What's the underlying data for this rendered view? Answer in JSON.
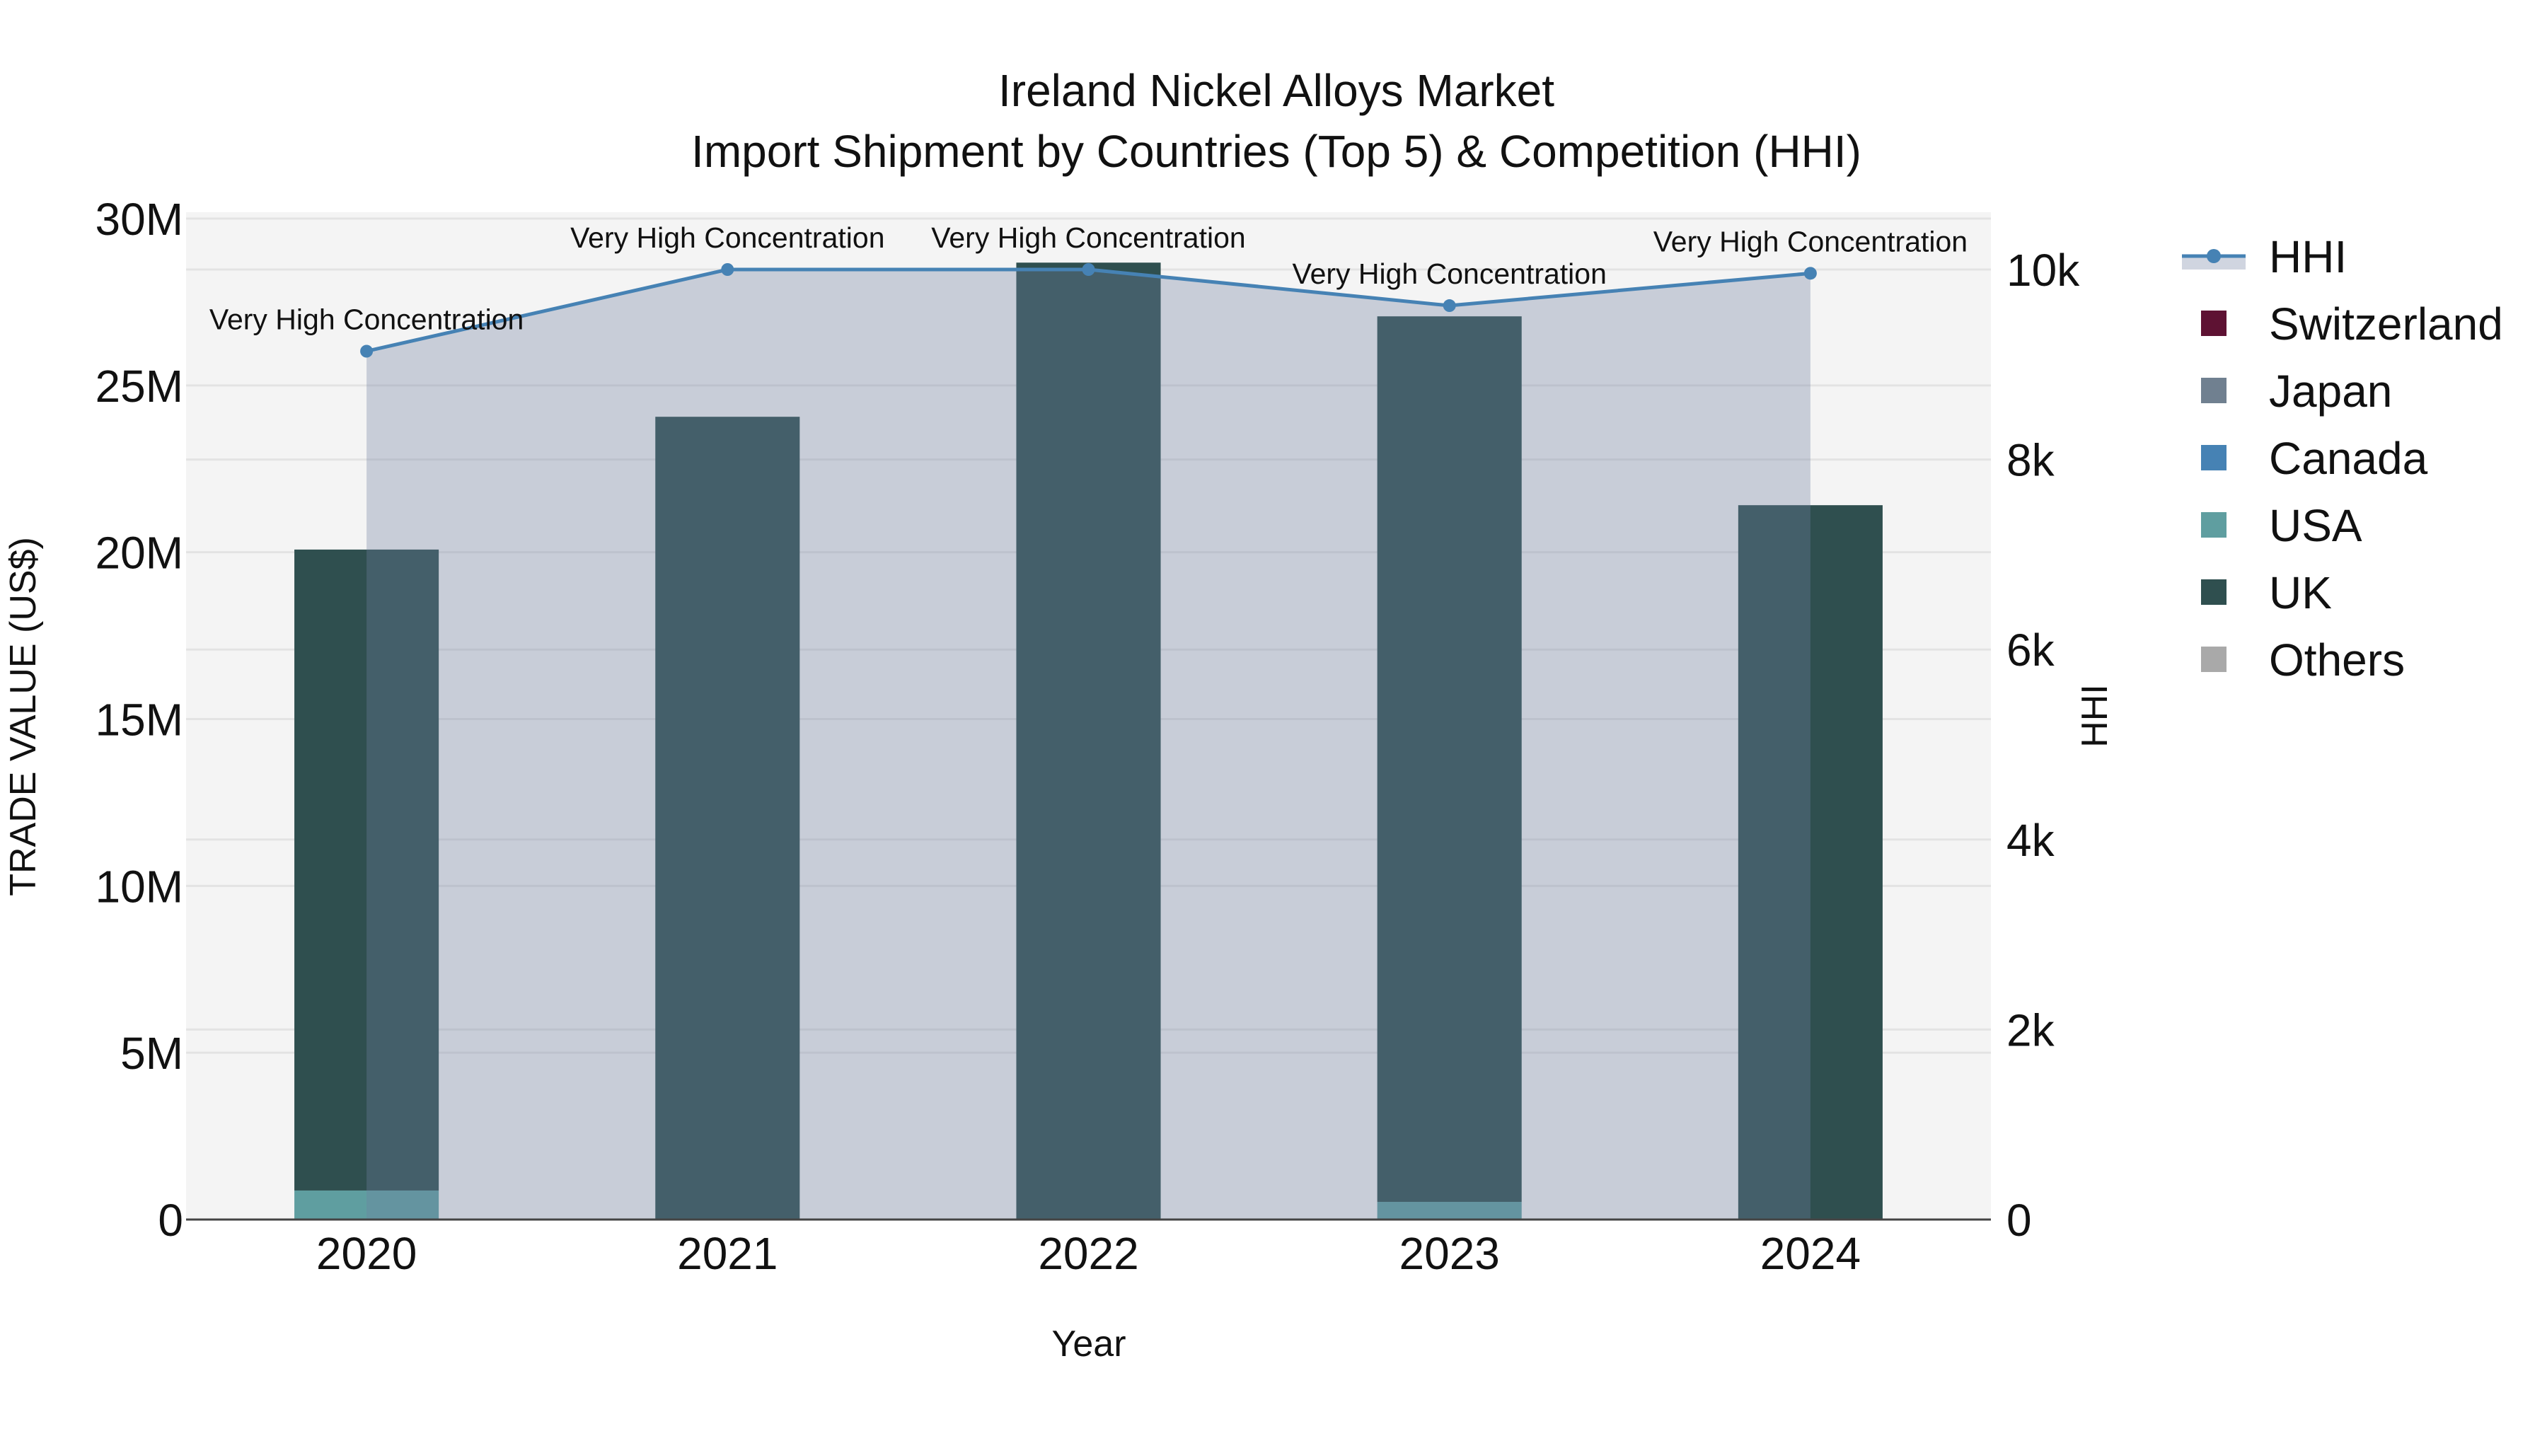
{
  "chart_data": {
    "type": "bar",
    "title": "Ireland Nickel Alloys Market",
    "subtitle": "Import Shipment by Countries (Top 5) & Competition (HHI)",
    "xlabel": "Year",
    "ylabel": "TRADE VALUE (US$)",
    "y2label": "HHI",
    "categories": [
      "2020",
      "2021",
      "2022",
      "2023",
      "2024"
    ],
    "ylim": [
      0,
      30000000
    ],
    "y_ticks": [
      0,
      5000000,
      10000000,
      15000000,
      20000000,
      25000000,
      30000000
    ],
    "y_tick_labels": [
      "0",
      "5M",
      "10M",
      "15M",
      "20M",
      "25M",
      "30M"
    ],
    "y2lim": [
      0,
      10580
    ],
    "y2_ticks": [
      0,
      2000,
      4000,
      6000,
      8000,
      10000
    ],
    "y2_tick_labels": [
      "0",
      "2k",
      "4k",
      "6k",
      "8k",
      "10k"
    ],
    "barmode": "stack",
    "grid": true,
    "legend_position": "right",
    "series": [
      {
        "name": "Switzerland",
        "type": "bar",
        "color": "#5e1233",
        "values": [
          0,
          0,
          0,
          0,
          0
        ]
      },
      {
        "name": "Japan",
        "type": "bar",
        "color": "#708090",
        "values": [
          0,
          0,
          0,
          0,
          0
        ]
      },
      {
        "name": "Canada",
        "type": "bar",
        "color": "#4682b4",
        "values": [
          0,
          0,
          0,
          0,
          0
        ]
      },
      {
        "name": "USA",
        "type": "bar",
        "color": "#5f9ea0",
        "values": [
          870000,
          0,
          0,
          530000,
          20000
        ]
      },
      {
        "name": "UK",
        "type": "bar",
        "color": "#2f4f4f",
        "values": [
          19210000,
          24060000,
          28680000,
          26540000,
          21390000
        ]
      },
      {
        "name": "Others",
        "type": "bar",
        "color": "#a9a9a9",
        "values": [
          0,
          0,
          0,
          0,
          0
        ]
      },
      {
        "name": "HHI",
        "type": "line",
        "axis": "y2",
        "color": "#4682b4",
        "fill": "tozeroy",
        "fill_color": "rgba(112,128,160,0.33)",
        "values": [
          9140,
          10000,
          10000,
          9620,
          9960
        ],
        "annotations": [
          "Very High Concentration",
          "Very High Concentration",
          "Very High Concentration",
          "Very High Concentration",
          "Very High Concentration"
        ]
      }
    ]
  },
  "legend": {
    "items": [
      {
        "label": "HHI",
        "kind": "line",
        "color": "#4682b4"
      },
      {
        "label": "Switzerland",
        "kind": "box",
        "color": "#5e1233"
      },
      {
        "label": "Japan",
        "kind": "box",
        "color": "#708090"
      },
      {
        "label": "Canada",
        "kind": "box",
        "color": "#4682b4"
      },
      {
        "label": "USA",
        "kind": "box",
        "color": "#5f9ea0"
      },
      {
        "label": "UK",
        "kind": "box",
        "color": "#2f4f4f"
      },
      {
        "label": "Others",
        "kind": "box",
        "color": "#a9a9a9"
      }
    ]
  },
  "colors": {
    "plot_bg": "#f4f4f4",
    "grid": "#e3e3e3",
    "axis_line": "#444444",
    "hhi_fill": "rgba(112,128,160,0.33)"
  }
}
